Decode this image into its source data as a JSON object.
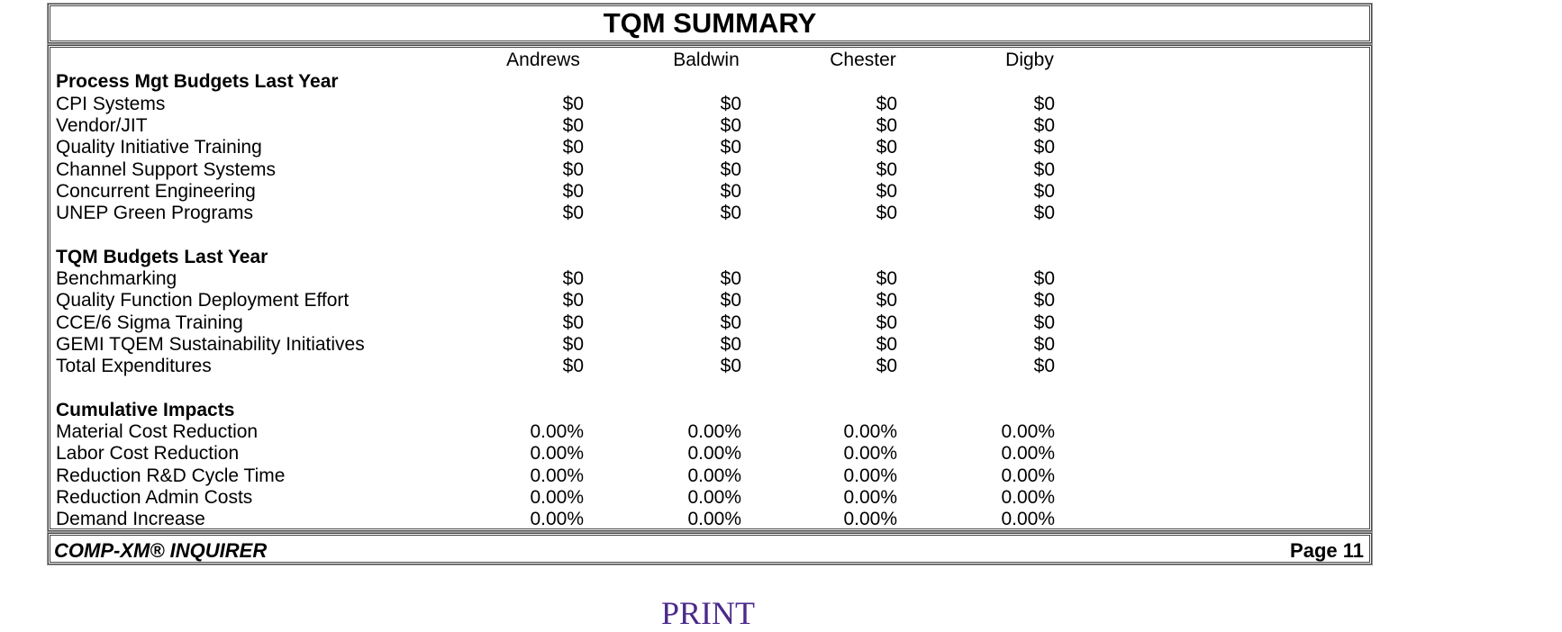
{
  "header": {
    "title": "TQM SUMMARY"
  },
  "table": {
    "columns": [
      "Andrews",
      "Baldwin",
      "Chester",
      "Digby"
    ],
    "sections": [
      {
        "title": "Process Mgt Budgets Last Year",
        "rows": [
          {
            "label": "CPI Systems",
            "values": [
              "$0",
              "$0",
              "$0",
              "$0"
            ]
          },
          {
            "label": "Vendor/JIT",
            "values": [
              "$0",
              "$0",
              "$0",
              "$0"
            ]
          },
          {
            "label": "Quality Initiative Training",
            "values": [
              "$0",
              "$0",
              "$0",
              "$0"
            ]
          },
          {
            "label": "Channel Support Systems",
            "values": [
              "$0",
              "$0",
              "$0",
              "$0"
            ]
          },
          {
            "label": "Concurrent Engineering",
            "values": [
              "$0",
              "$0",
              "$0",
              "$0"
            ]
          },
          {
            "label": "UNEP Green Programs",
            "values": [
              "$0",
              "$0",
              "$0",
              "$0"
            ]
          }
        ]
      },
      {
        "title": "TQM Budgets Last Year",
        "rows": [
          {
            "label": "Benchmarking",
            "values": [
              "$0",
              "$0",
              "$0",
              "$0"
            ]
          },
          {
            "label": "Quality Function Deployment Effort",
            "values": [
              "$0",
              "$0",
              "$0",
              "$0"
            ]
          },
          {
            "label": "CCE/6 Sigma Training",
            "values": [
              "$0",
              "$0",
              "$0",
              "$0"
            ]
          },
          {
            "label": "GEMI TQEM Sustainability Initiatives",
            "values": [
              "$0",
              "$0",
              "$0",
              "$0"
            ]
          },
          {
            "label": "Total Expenditures",
            "values": [
              "$0",
              "$0",
              "$0",
              "$0"
            ]
          }
        ]
      },
      {
        "title": "Cumulative Impacts",
        "rows": [
          {
            "label": "Material Cost Reduction",
            "values": [
              "0.00%",
              "0.00%",
              "0.00%",
              "0.00%"
            ]
          },
          {
            "label": "Labor Cost Reduction",
            "values": [
              "0.00%",
              "0.00%",
              "0.00%",
              "0.00%"
            ]
          },
          {
            "label": "Reduction R&D Cycle Time",
            "values": [
              "0.00%",
              "0.00%",
              "0.00%",
              "0.00%"
            ]
          },
          {
            "label": "Reduction Admin Costs",
            "values": [
              "0.00%",
              "0.00%",
              "0.00%",
              "0.00%"
            ]
          },
          {
            "label": "Demand Increase",
            "values": [
              "0.00%",
              "0.00%",
              "0.00%",
              "0.00%"
            ]
          }
        ]
      }
    ]
  },
  "footer": {
    "left": "COMP-XM® INQUIRER",
    "right": "Page 11"
  },
  "print_link": "PRINT"
}
